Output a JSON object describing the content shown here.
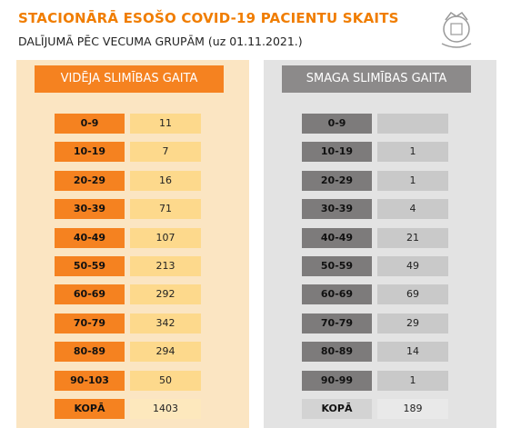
{
  "header": {
    "title": "STACIONĀRĀ ESOŠO COVID-19 PACIENTU SKAITS",
    "subtitle": "DALĪJUMĀ PĒC VECUMA GRUPĀM (uz 01.11.2021.)"
  },
  "panels": [
    {
      "title": "VIDĒJA SLIMĪBAS GAITA",
      "rows": [
        [
          "0-9",
          11
        ],
        [
          "10-19",
          7
        ],
        [
          "20-29",
          16
        ],
        [
          "30-39",
          71
        ],
        [
          "40-49",
          107
        ],
        [
          "50-59",
          213
        ],
        [
          "60-69",
          292
        ],
        [
          "70-79",
          342
        ],
        [
          "80-89",
          294
        ],
        [
          "90-103",
          50
        ],
        [
          "KOPĀ",
          1403
        ]
      ]
    },
    {
      "title": "SMAGA SLIMĪBAS GAITA",
      "rows": [
        [
          "0-9",
          null
        ],
        [
          "10-19",
          1
        ],
        [
          "20-29",
          1
        ],
        [
          "30-39",
          4
        ],
        [
          "40-49",
          21
        ],
        [
          "50-59",
          49
        ],
        [
          "60-69",
          69
        ],
        [
          "70-79",
          29
        ],
        [
          "80-89",
          14
        ],
        [
          "90-99",
          1
        ],
        [
          "KOPĀ",
          189
        ]
      ]
    }
  ]
}
